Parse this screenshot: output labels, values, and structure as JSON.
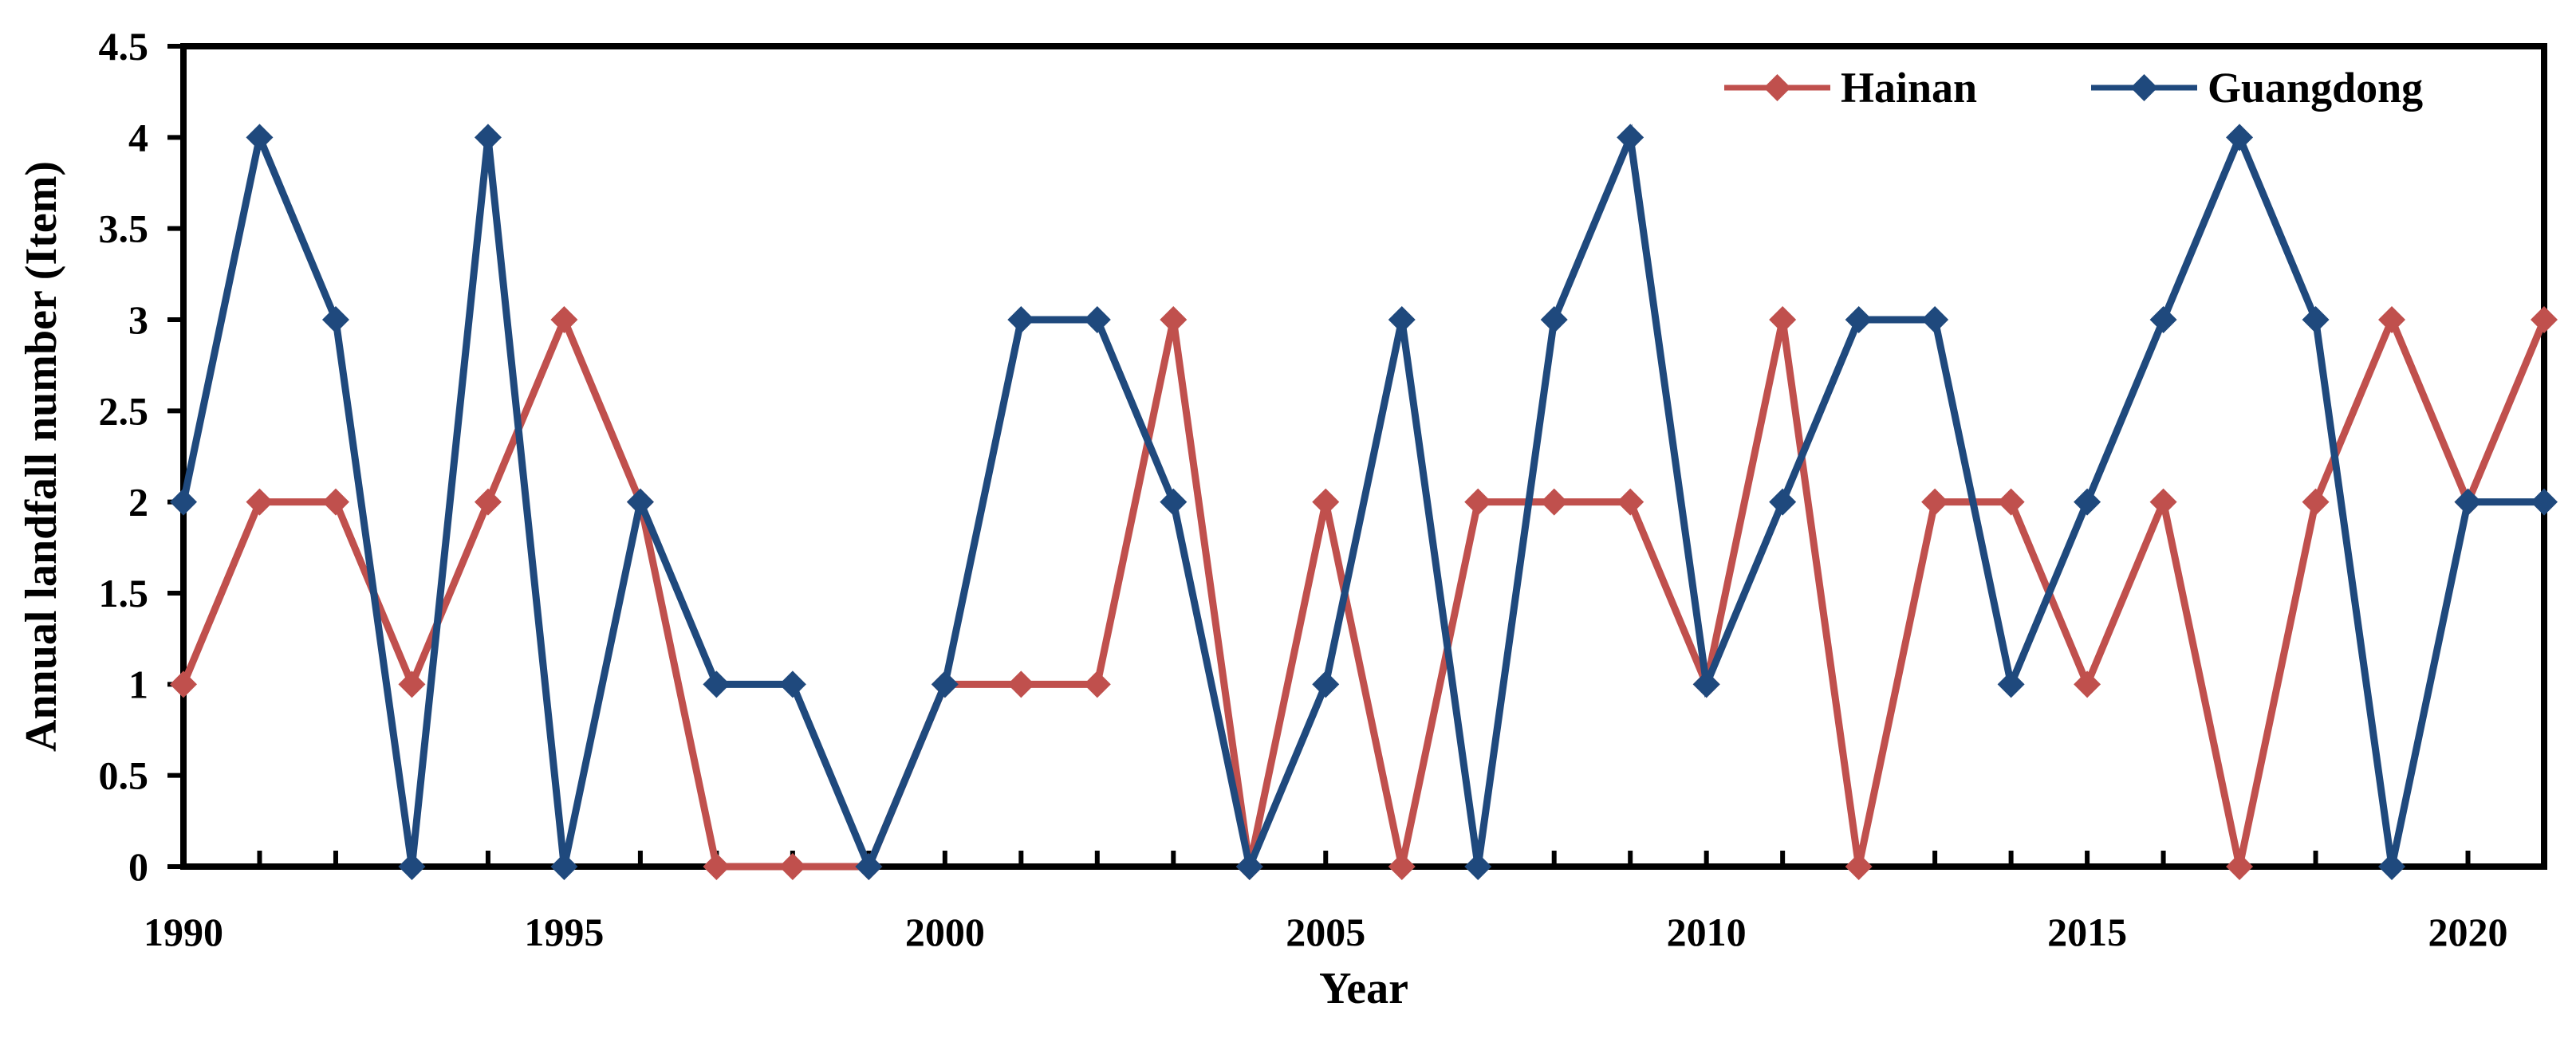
{
  "chart_data": {
    "type": "line",
    "title": "",
    "xlabel": "Year",
    "ylabel": "Annual landfall number (Item)",
    "xlim": [
      1990,
      2021
    ],
    "ylim": [
      0,
      4.5
    ],
    "x_ticks": [
      "1990",
      "1995",
      "2000",
      "2005",
      "2010",
      "2015",
      "2020"
    ],
    "y_ticks": [
      "0",
      "0.5",
      "1",
      "1.5",
      "2",
      "2.5",
      "3",
      "3.5",
      "4",
      "4.5"
    ],
    "grid": false,
    "legend_position": "top-right",
    "x": [
      1990,
      1991,
      1992,
      1993,
      1994,
      1995,
      1996,
      1997,
      1998,
      1999,
      2000,
      2001,
      2002,
      2003,
      2004,
      2005,
      2006,
      2007,
      2008,
      2009,
      2010,
      2011,
      2012,
      2013,
      2014,
      2015,
      2016,
      2017,
      2018,
      2019,
      2020,
      2021
    ],
    "series": [
      {
        "name": "Hainan",
        "color": "#C0504D",
        "marker": "diamond",
        "values": [
          1,
          2,
          2,
          1,
          2,
          3,
          2,
          0,
          0,
          0,
          1,
          1,
          1,
          3,
          0,
          2,
          0,
          2,
          2,
          2,
          1,
          3,
          0,
          2,
          2,
          1,
          2,
          0,
          2,
          3,
          2,
          3
        ]
      },
      {
        "name": "Guangdong",
        "color": "#1F497D",
        "marker": "diamond",
        "values": [
          2,
          4,
          3,
          0,
          4,
          0,
          2,
          1,
          1,
          0,
          1,
          3,
          3,
          2,
          0,
          1,
          3,
          0,
          3,
          4,
          1,
          2,
          3,
          3,
          1,
          2,
          3,
          4,
          3,
          0,
          2,
          2
        ]
      }
    ]
  }
}
